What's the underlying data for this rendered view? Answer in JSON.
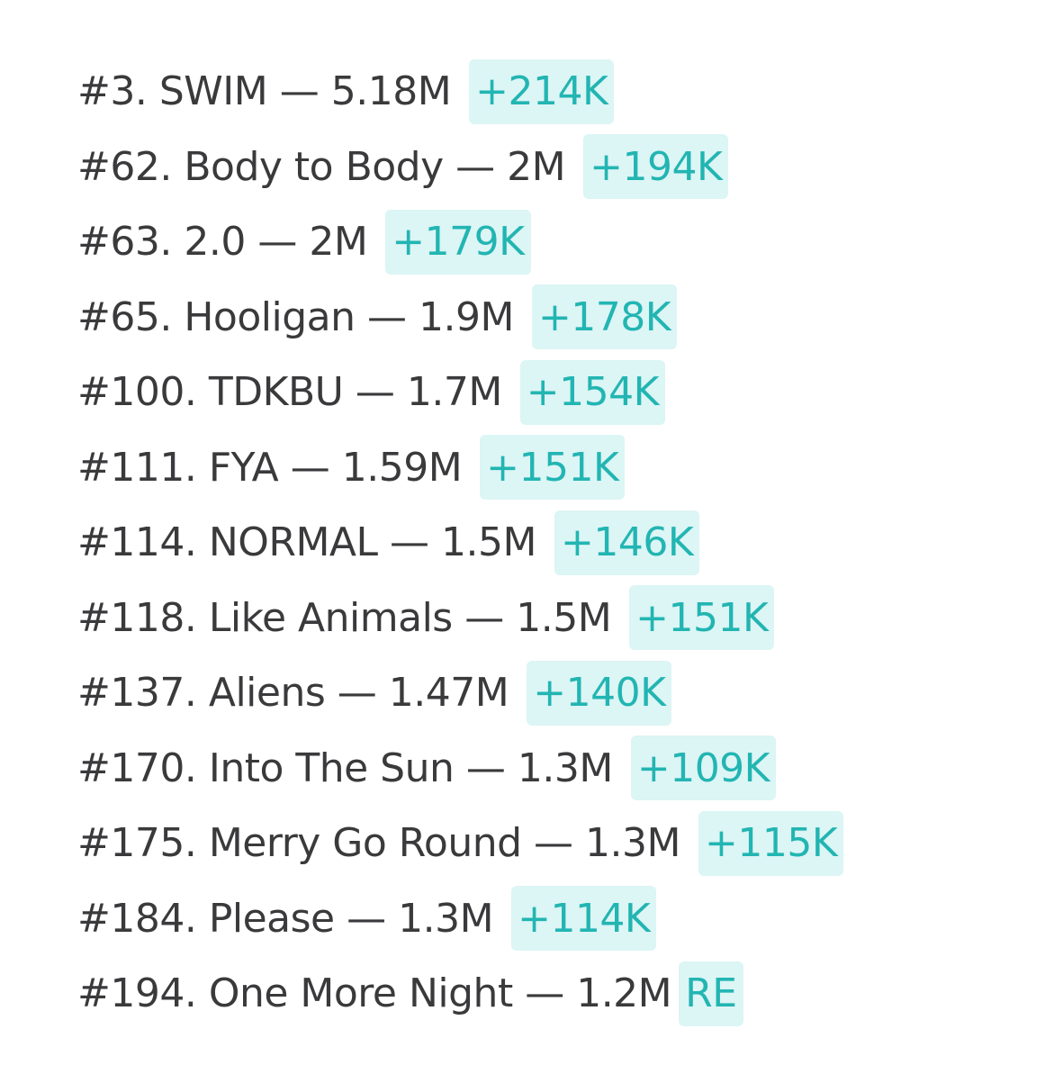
{
  "rows": [
    {
      "rank": "#3.",
      "title": "SWIM",
      "streams": "5.18M",
      "change": "+214K"
    },
    {
      "rank": "#62.",
      "title": "Body to Body",
      "streams": "2M",
      "change": "+194K"
    },
    {
      "rank": "#63.",
      "title": "2.0",
      "streams": "2M",
      "change": "+179K"
    },
    {
      "rank": "#65.",
      "title": "Hooligan",
      "streams": "1.9M",
      "change": "+178K"
    },
    {
      "rank": "#100.",
      "title": "TDKBU",
      "streams": "1.7M",
      "change": "+154K"
    },
    {
      "rank": "#111.",
      "title": "FYA",
      "streams": "1.59M",
      "change": "+151K"
    },
    {
      "rank": "#114.",
      "title": "NORMAL",
      "streams": "1.5M",
      "change": "+146K"
    },
    {
      "rank": "#118.",
      "title": "Like Animals",
      "streams": "1.5M",
      "change": "+151K"
    },
    {
      "rank": "#137.",
      "title": "Aliens",
      "streams": "1.47M",
      "change": "+140K"
    },
    {
      "rank": "#170.",
      "title": "Into The Sun",
      "streams": "1.3M",
      "change": "+109K"
    },
    {
      "rank": "#175.",
      "title": "Merry Go Round",
      "streams": "1.3M",
      "change": "+115K"
    },
    {
      "rank": "#184.",
      "title": "Please",
      "streams": "1.3M",
      "change": "+114K"
    },
    {
      "rank": "#194.",
      "title": "One More Night",
      "streams": "1.2M",
      "change": "RE"
    }
  ],
  "separator": "—",
  "colors": {
    "text": "#3a3a3c",
    "badge_text": "#22b5b2",
    "badge_bg": "#dcf5f5",
    "background": "#ffffff"
  }
}
